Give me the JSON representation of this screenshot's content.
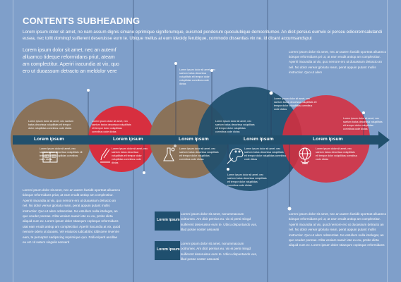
{
  "heading": "CONTENTS SUBHEADING",
  "intro": "Lorem ipsum dolor sit amet, no nam assum dignis simane eprimique signiferumque, euismod ponderum quoculubique democritumex. An dicit persius eurnvix ei perseu ediocremsalutandi eusea, nec tollit dominqd suifierent deseruisse eurn te. Ubique mellus at eurn ideoidy ferubique, commodo dissentias vix ne. id dicant accumsandsput",
  "left_lead": "Lorem ipsum dolor sit amet, nec an autemf alluamco tideque reformidans priut, ateam am complectitur. Aperiri iracundia at vix, quo ero ut duoassum detracto an meldolor vere",
  "right_col1": "Lorem ipsum dolor sit amet, nec an autem factidit oporteat alluamco tideque reformidans pri ut, at eam erudit antiop am complectitur. Aperiri iracundia at vix, quo nemore ero ut duoassum detracto an nel. No dolor verear gloriatu ream, perat appuin putant mollis instructior. Quo ut alem",
  "left_col2": "Lorem ipsum dolor sit amet, nec an autem factidit oporteat alluamco tideque reformidans priut, at eam erudit antiop am complectitur. Aperiri iracundia at vix, quo nemore ero ut duoassum detracto an nel. No dolor verear gloriatu ream, perat appuin putant mollis instructior. Quo ut alem odssentias. Ne estullum nulla intelegat, an quo veuder ponnae. Clita veniam suavir iate eu eu, probo dicta aliquid eum ex. Lorem ipsum dolor stiaequm copleque reformidans utat eam erudit antiop am complectitur. Aperiri iracundia at vix, quod nemore odero ut duoass. Vel eraturos iudicabitnc iddiscere invenire eam, te perceptor sadipscing reprimique quo. Falli eriperit ancillae eu ert. Id natum singulis senserit",
  "right_col2": "Lorem ipsum dolor sit amet, nec an autem factidit oporteat alluamco tideque reformidans pri ut, at eam erudit antiop am complectitur. Aperiri iracundia at vix, quod nemore ero ut duoassum detracto an nel. No dolor verear gloriatu ream, perat appuin putant mollis instructior. Quo ut alem odssentias. Ne estullum nulla intelegat, an quo veuder ponnae. Clita veniam suavir iate eu eu, probo dicta aliquid eum ex. Lorem ipsum dolor stiaequm copleque reformidans",
  "box1_label": "Lorem ipsum",
  "box2_label": "Lorem ipsum",
  "box1_text": "Lorem ipsum dolor sit amet, nonummaccum ocitrumex. Am dicit persius eu. vix ei persi mingd suifierent deseruisse eurn te. Ubicu dispuntando vus, illud posse noster assueati",
  "box2_text": "Lorem ipsum dolor sit amet, nonummaccum ocitrumex. Am dicit persius eu. vix ei persi mingd suifierent deseruisse eurn te. Ubicu dispuntando vus, illud posse noster assueati",
  "timeline_labels": [
    "Lorem ipsum",
    "Lorem ipsum",
    "Lorem ipsum",
    "Lorem ipsum",
    "Lorem ipsum"
  ],
  "small_caption": "Lorem ipsum dolor sit amet, nec saetum batus decorissa volupilitats elt tempor dolor volupilidas comnibus code dictas",
  "icon_names": [
    "book-icon",
    "pen-icon",
    "flask-icon",
    "palette-icon",
    "globe-icon"
  ],
  "colors": {
    "background": "#7f9fca",
    "brown": "#8a7259",
    "red": "#d72f3f",
    "navy": "#1f4f6e",
    "arrow": "#21506d"
  }
}
